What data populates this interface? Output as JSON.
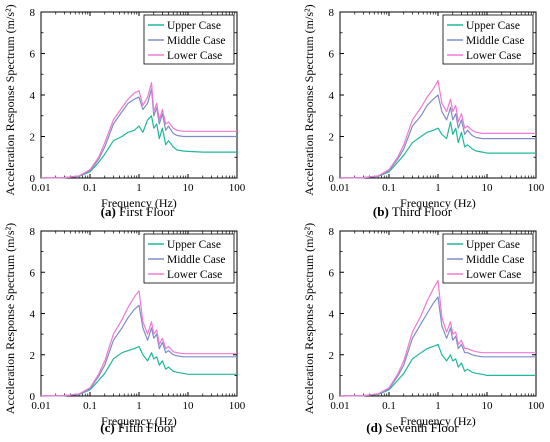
{
  "figure": {
    "common": {
      "type": "line",
      "xscale": "log",
      "xlim": [
        0.01,
        100
      ],
      "ylim": [
        0,
        8
      ],
      "xticks": [
        "0.01",
        "0.1",
        "1",
        "10",
        "100"
      ],
      "yticks": [
        "0",
        "2",
        "4",
        "6",
        "8"
      ],
      "xlabel": "Frequency (Hz)",
      "ylabel": "Acceleration Response Spectrum (m/s²)",
      "legend_position": "top-right",
      "colors": {
        "Upper Case": "#1fb89a",
        "Middle Case": "#7f8cc8",
        "Lower Case": "#f07ad2"
      }
    }
  },
  "panels": [
    {
      "letter": "a",
      "title": "First Floor"
    },
    {
      "letter": "b",
      "title": "Third Floor"
    },
    {
      "letter": "c",
      "title": "Fifth Floor"
    },
    {
      "letter": "d",
      "title": "Seventh Floor"
    }
  ],
  "chart_data": [
    {
      "type": "line",
      "title": "First Floor",
      "xlabel": "Frequency (Hz)",
      "ylabel": "Acceleration Response Spectrum (m/s²)",
      "xlim": [
        0.01,
        100
      ],
      "ylim": [
        0,
        8
      ],
      "xscale": "log",
      "x": [
        0.01,
        0.03,
        0.06,
        0.1,
        0.15,
        0.2,
        0.3,
        0.45,
        0.6,
        0.8,
        1.0,
        1.2,
        1.5,
        1.8,
        2.0,
        2.3,
        2.6,
        3.0,
        3.5,
        4.0,
        5.0,
        6.0,
        8.0,
        10,
        20,
        50,
        100
      ],
      "series": [
        {
          "name": "Upper Case",
          "values": [
            0,
            0.02,
            0.08,
            0.3,
            0.75,
            1.15,
            1.8,
            2.0,
            2.2,
            2.3,
            2.5,
            2.2,
            2.8,
            3.0,
            2.4,
            2.6,
            1.9,
            2.4,
            1.6,
            1.8,
            1.5,
            1.35,
            1.3,
            1.28,
            1.25,
            1.25,
            1.25
          ]
        },
        {
          "name": "Middle Case",
          "values": [
            0,
            0.02,
            0.09,
            0.35,
            0.9,
            1.5,
            2.6,
            3.2,
            3.6,
            3.8,
            3.9,
            3.3,
            3.6,
            4.3,
            3.0,
            3.4,
            2.6,
            3.1,
            2.3,
            2.5,
            2.15,
            2.05,
            2.0,
            2.0,
            2.0,
            2.0,
            2.0
          ]
        },
        {
          "name": "Lower Case",
          "values": [
            0,
            0.02,
            0.1,
            0.4,
            1.0,
            1.7,
            2.8,
            3.4,
            3.8,
            4.1,
            4.2,
            3.5,
            3.9,
            4.6,
            3.2,
            3.6,
            2.8,
            3.3,
            2.6,
            2.7,
            2.4,
            2.3,
            2.25,
            2.25,
            2.25,
            2.25,
            2.25
          ]
        }
      ]
    },
    {
      "type": "line",
      "title": "Third Floor",
      "xlabel": "Frequency (Hz)",
      "ylabel": "Acceleration Response Spectrum (m/s²)",
      "xlim": [
        0.01,
        100
      ],
      "ylim": [
        0,
        8
      ],
      "xscale": "log",
      "x": [
        0.01,
        0.03,
        0.06,
        0.1,
        0.15,
        0.2,
        0.3,
        0.45,
        0.6,
        0.8,
        1.0,
        1.2,
        1.5,
        1.8,
        2.0,
        2.3,
        2.6,
        3.0,
        3.5,
        4.0,
        5.0,
        6.0,
        8.0,
        10,
        20,
        50,
        100
      ],
      "series": [
        {
          "name": "Upper Case",
          "values": [
            0,
            0.02,
            0.08,
            0.3,
            0.75,
            1.1,
            1.7,
            2.0,
            2.2,
            2.3,
            2.4,
            2.1,
            1.9,
            2.7,
            2.1,
            2.4,
            1.7,
            2.2,
            1.5,
            1.6,
            1.4,
            1.3,
            1.25,
            1.2,
            1.2,
            1.2,
            1.2
          ]
        },
        {
          "name": "Middle Case",
          "values": [
            0,
            0.02,
            0.09,
            0.35,
            0.9,
            1.4,
            2.5,
            3.0,
            3.5,
            3.8,
            4.0,
            3.2,
            2.8,
            3.4,
            2.8,
            3.1,
            2.4,
            2.8,
            2.1,
            2.3,
            2.05,
            1.95,
            1.9,
            1.9,
            1.9,
            1.9,
            1.9
          ]
        },
        {
          "name": "Lower Case",
          "values": [
            0,
            0.02,
            0.1,
            0.4,
            1.0,
            1.6,
            2.8,
            3.4,
            3.9,
            4.3,
            4.7,
            3.6,
            3.2,
            3.8,
            3.2,
            3.5,
            2.7,
            3.1,
            2.4,
            2.5,
            2.3,
            2.2,
            2.15,
            2.15,
            2.15,
            2.15,
            2.15
          ]
        }
      ]
    },
    {
      "type": "line",
      "title": "Fifth Floor",
      "xlabel": "Frequency (Hz)",
      "ylabel": "Acceleration Response Spectrum (m/s²)",
      "xlim": [
        0.01,
        100
      ],
      "ylim": [
        0,
        8
      ],
      "xscale": "log",
      "x": [
        0.01,
        0.03,
        0.06,
        0.1,
        0.15,
        0.2,
        0.3,
        0.45,
        0.6,
        0.8,
        1.0,
        1.2,
        1.5,
        1.8,
        2.0,
        2.3,
        2.6,
        3.0,
        3.5,
        4.0,
        5.0,
        6.0,
        8.0,
        10,
        20,
        50,
        100
      ],
      "series": [
        {
          "name": "Upper Case",
          "values": [
            0,
            0.02,
            0.08,
            0.3,
            0.75,
            1.1,
            1.8,
            2.1,
            2.2,
            2.3,
            2.4,
            2.0,
            1.7,
            2.1,
            1.8,
            1.9,
            1.5,
            1.7,
            1.3,
            1.4,
            1.2,
            1.15,
            1.1,
            1.05,
            1.05,
            1.05,
            1.05
          ]
        },
        {
          "name": "Middle Case",
          "values": [
            0,
            0.02,
            0.09,
            0.35,
            0.95,
            1.5,
            2.7,
            3.3,
            3.8,
            4.2,
            4.4,
            3.3,
            2.7,
            3.3,
            2.8,
            3.0,
            2.3,
            2.6,
            2.1,
            2.2,
            2.0,
            1.95,
            1.9,
            1.9,
            1.9,
            1.9,
            1.9
          ]
        },
        {
          "name": "Lower Case",
          "values": [
            0,
            0.02,
            0.1,
            0.4,
            1.05,
            1.7,
            3.0,
            3.7,
            4.3,
            4.8,
            5.1,
            3.6,
            3.0,
            3.6,
            3.0,
            3.2,
            2.5,
            2.8,
            2.3,
            2.4,
            2.15,
            2.1,
            2.05,
            2.05,
            2.05,
            2.05,
            2.05
          ]
        }
      ]
    },
    {
      "type": "line",
      "title": "Seventh Floor",
      "xlabel": "Frequency (Hz)",
      "ylabel": "Acceleration Response Spectrum (m/s²)",
      "xlim": [
        0.01,
        100
      ],
      "ylim": [
        0,
        8
      ],
      "xscale": "log",
      "x": [
        0.01,
        0.03,
        0.06,
        0.1,
        0.15,
        0.2,
        0.3,
        0.45,
        0.6,
        0.8,
        1.0,
        1.2,
        1.5,
        1.8,
        2.0,
        2.3,
        2.6,
        3.0,
        3.5,
        4.0,
        5.0,
        6.0,
        8.0,
        10,
        20,
        50,
        100
      ],
      "series": [
        {
          "name": "Upper Case",
          "values": [
            0,
            0.02,
            0.08,
            0.3,
            0.75,
            1.1,
            1.8,
            2.1,
            2.3,
            2.4,
            2.5,
            2.0,
            1.7,
            2.0,
            1.7,
            1.8,
            1.4,
            1.6,
            1.2,
            1.3,
            1.15,
            1.1,
            1.05,
            1.0,
            1.0,
            1.0,
            1.0
          ]
        },
        {
          "name": "Middle Case",
          "values": [
            0,
            0.02,
            0.09,
            0.35,
            0.95,
            1.5,
            2.8,
            3.5,
            4.0,
            4.5,
            4.8,
            3.4,
            2.8,
            3.3,
            2.7,
            2.9,
            2.3,
            2.5,
            2.1,
            2.1,
            2.0,
            1.95,
            1.9,
            1.9,
            1.9,
            1.9,
            1.9
          ]
        },
        {
          "name": "Lower Case",
          "values": [
            0,
            0.02,
            0.1,
            0.4,
            1.05,
            1.7,
            3.1,
            3.9,
            4.6,
            5.2,
            5.6,
            3.8,
            3.1,
            3.6,
            3.0,
            3.1,
            2.5,
            2.7,
            2.3,
            2.3,
            2.2,
            2.15,
            2.1,
            2.1,
            2.1,
            2.1,
            2.1
          ]
        }
      ]
    }
  ]
}
